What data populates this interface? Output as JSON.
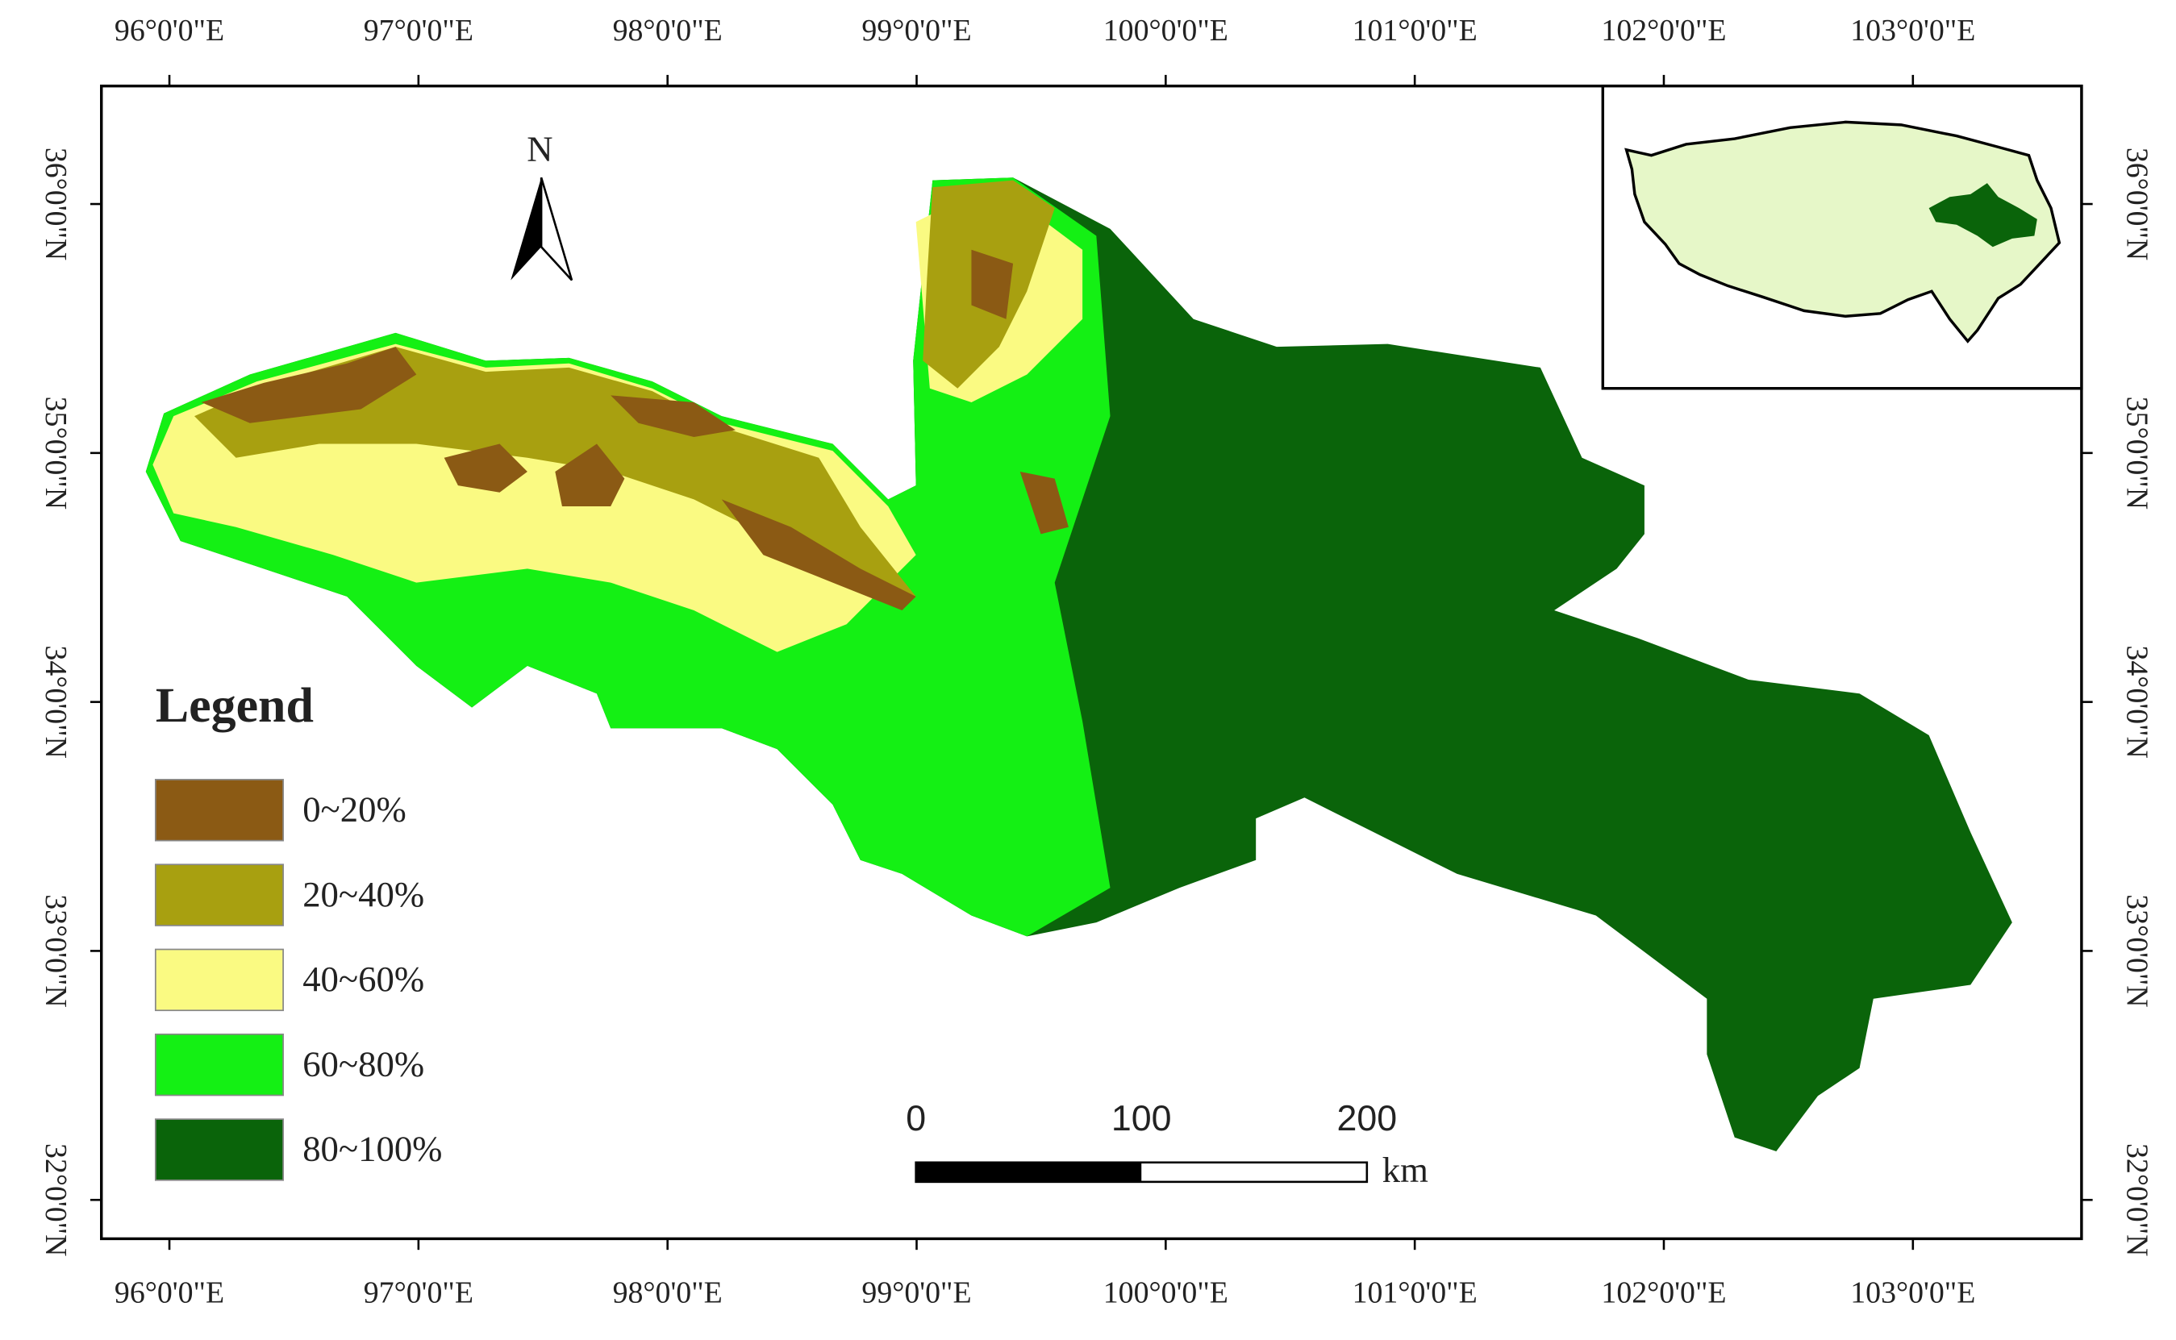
{
  "map": {
    "lonlim": [
      95.727,
      103.677
    ],
    "latlim": [
      31.844,
      36.474
    ],
    "lon_ticks": [
      {
        "value": 96,
        "label": "96°0'0\"E"
      },
      {
        "value": 97,
        "label": "97°0'0\"E"
      },
      {
        "value": 98,
        "label": "98°0'0\"E"
      },
      {
        "value": 99,
        "label": "99°0'0\"E"
      },
      {
        "value": 100,
        "label": "100°0'0\"E"
      },
      {
        "value": 101,
        "label": "101°0'0\"E"
      },
      {
        "value": 102,
        "label": "102°0'0\"E"
      },
      {
        "value": 103,
        "label": "103°0'0\"E"
      }
    ],
    "lat_ticks": [
      {
        "value": 36,
        "label": "36°0'0\"N"
      },
      {
        "value": 35,
        "label": "35°0'0\"N"
      },
      {
        "value": 34,
        "label": "34°0'0\"N"
      },
      {
        "value": 33,
        "label": "33°0'0\"N"
      },
      {
        "value": 32,
        "label": "32°0'0\"N"
      }
    ],
    "north_label": "N",
    "legend": {
      "title": "Legend",
      "items": [
        {
          "label": "0~20%",
          "color": "#8b5a14"
        },
        {
          "label": "20~40%",
          "color": "#a8a010"
        },
        {
          "label": "40~60%",
          "color": "#fafa82"
        },
        {
          "label": "60~80%",
          "color": "#14f014"
        },
        {
          "label": "80~100%",
          "color": "#0a640a"
        }
      ]
    },
    "scale_bar": {
      "ticks": [
        0,
        100,
        200
      ],
      "unit": "km"
    }
  }
}
